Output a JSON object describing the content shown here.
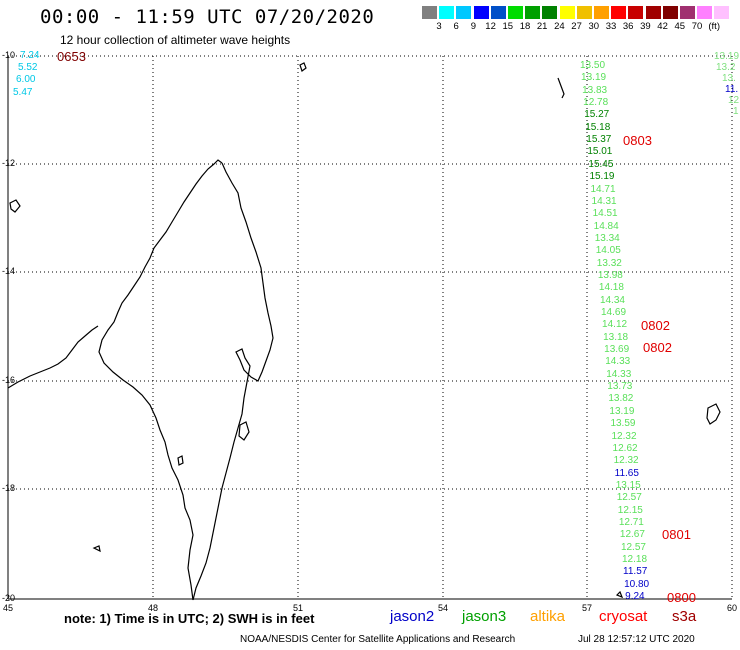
{
  "title": "00:00 - 11:59 UTC 07/20/2020",
  "subtitle": "12 hour collection of altimeter wave heights",
  "color_scale": {
    "colors": [
      "#808080",
      "#00ffff",
      "#00c8ff",
      "#0000ff",
      "#0050c8",
      "#00dc00",
      "#00a000",
      "#008200",
      "#ffff00",
      "#f0c000",
      "#ffa000",
      "#ff0000",
      "#c80000",
      "#a00000",
      "#800000",
      "#a03070",
      "#ff80ff",
      "#ffc0ff"
    ],
    "labels": [
      "3",
      "6",
      "9",
      "12",
      "15",
      "18",
      "21",
      "24",
      "27",
      "30",
      "33",
      "36",
      "39",
      "42",
      "45",
      "70",
      "(ft)"
    ]
  },
  "axes": {
    "lat_labels": [
      "-10",
      "-12",
      "-14",
      "-16",
      "-18",
      "-20"
    ],
    "lon_labels": [
      "45",
      "48",
      "51",
      "54",
      "57",
      "60"
    ]
  },
  "left_track": {
    "values": [
      "7.24",
      "5.52",
      "6.00",
      "5.47"
    ],
    "time": "0653"
  },
  "right_edge_values": [
    "13.19",
    "13.2",
    "13.",
    "11.",
    "12",
    "1"
  ],
  "main_track": {
    "values": [
      "13.50",
      "13.19",
      "13.83",
      "12.78",
      "15.27",
      "15.18",
      "15.37",
      "15.01",
      "15.45",
      "15.19",
      "14.71",
      "14.31",
      "14.51",
      "14.84",
      "13.34",
      "14.05",
      "13.32",
      "13.98",
      "14.18",
      "14.34",
      "14.69",
      "14.12",
      "13.18",
      "13.69",
      "14.33",
      "14.33",
      "13.73",
      "13.82",
      "13.19",
      "13.59",
      "12.32",
      "12.62",
      "12.32",
      "11.65",
      "13.15",
      "12.57",
      "12.15",
      "12.71",
      "12.67",
      "12.57",
      "12.18",
      "11.57",
      "10.80",
      "9.24"
    ],
    "times": [
      "0803",
      "0802",
      "0802",
      "0801",
      "0800"
    ]
  },
  "note": "note: 1) Time is in UTC; 2) SWH is in feet",
  "satellites": [
    {
      "name": "jason2",
      "color": "#0000c8"
    },
    {
      "name": "jason3",
      "color": "#00a000"
    },
    {
      "name": "altika",
      "color": "#ffa000"
    },
    {
      "name": "cryosat",
      "color": "#ff0000"
    },
    {
      "name": "s3a",
      "color": "#a00000"
    }
  ],
  "credit": "NOAA/NESDIS Center for Satellite Applications and Research",
  "timestamp": "Jul 28 12:57:12 UTC 2020"
}
